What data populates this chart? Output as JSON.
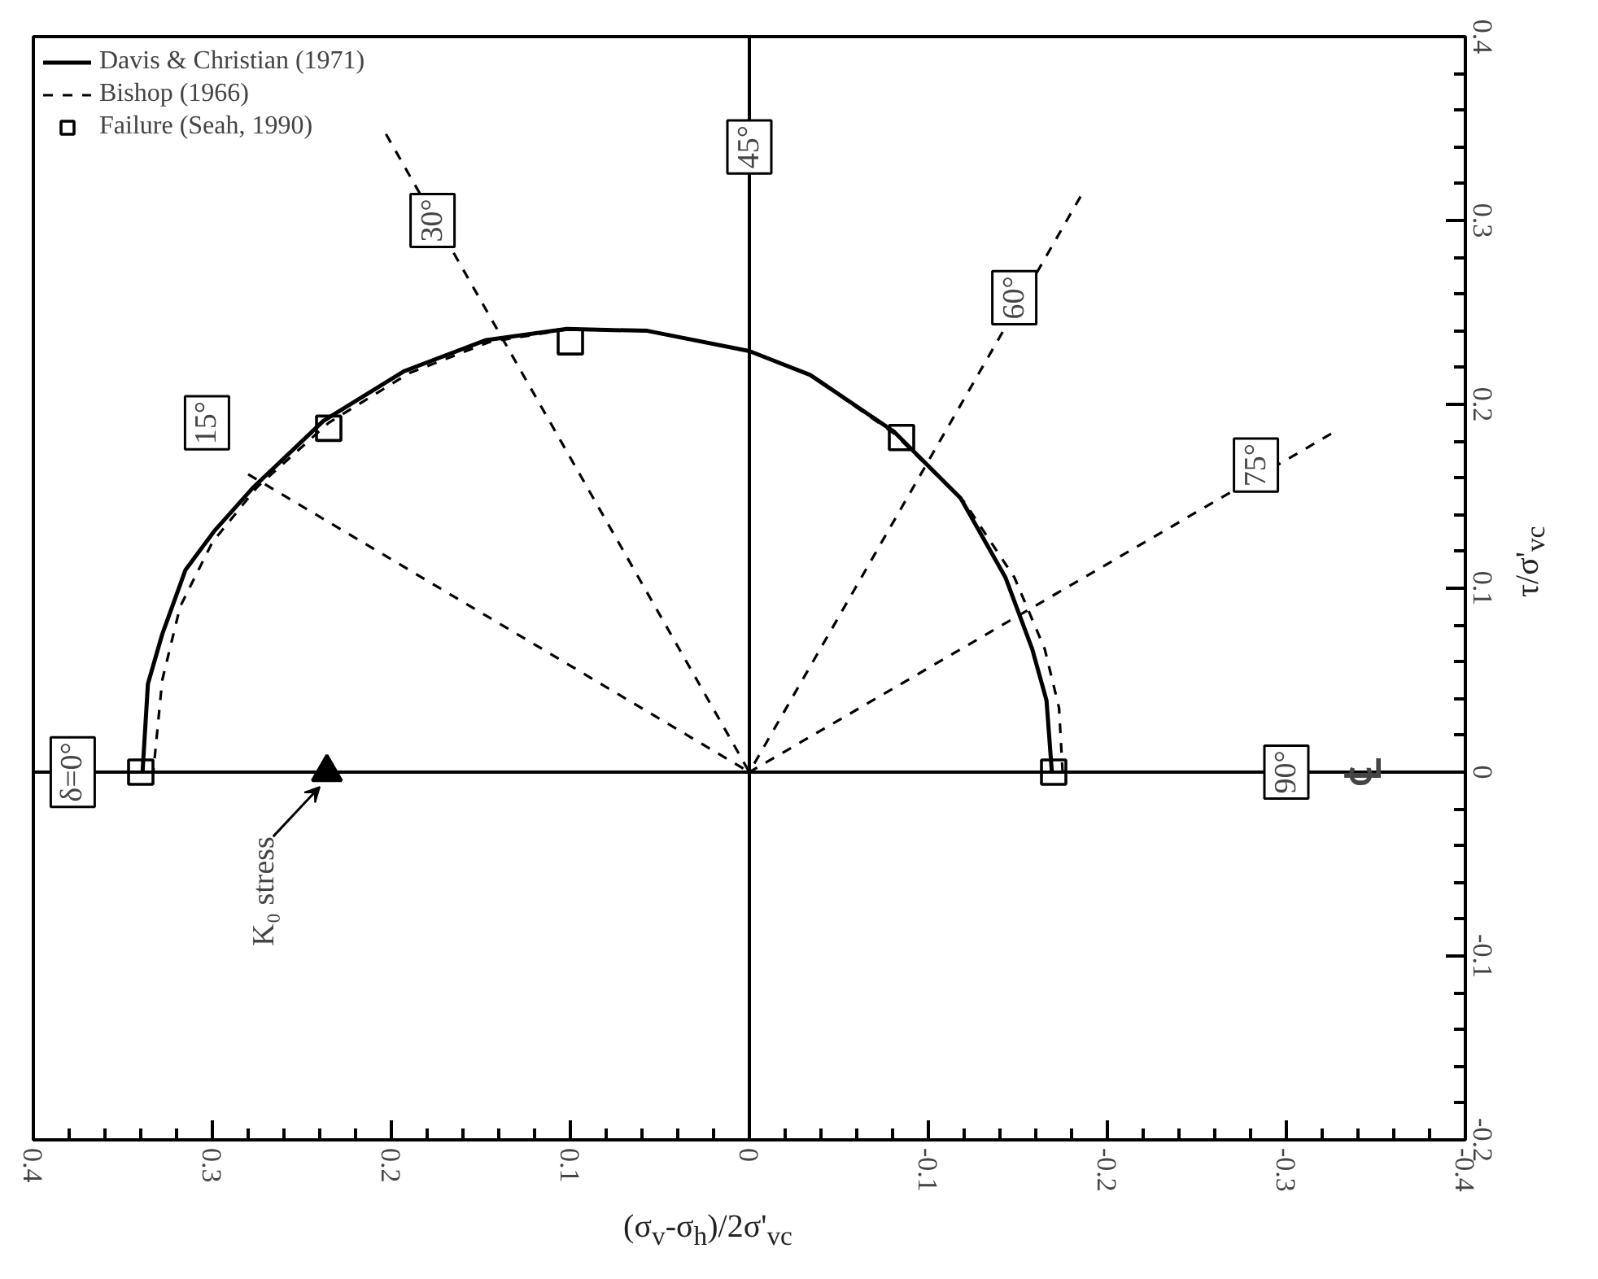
{
  "chart_data": {
    "type": "line",
    "xlabel": "(σ$_{v}$-σ$_{h}$)/2σ'$_{vc}$",
    "ylabel": "τ/σ'$_{vc}$",
    "xlim": [
      0.4,
      -0.4
    ],
    "ylim": [
      -0.2,
      0.4
    ],
    "xticks": [
      -0.4,
      -0.3,
      -0.2,
      -0.1,
      0,
      0.1,
      0.2,
      0.3,
      0.4,
      {
        "value": -0.38,
        "label": null
      },
      {
        "value": -0.36,
        "label": null
      },
      {
        "value": -0.34,
        "label": null
      },
      {
        "value": -0.32,
        "label": null
      },
      {
        "value": -0.28,
        "label": null
      },
      {
        "value": -0.26,
        "label": null
      },
      {
        "value": -0.24,
        "label": null
      },
      {
        "value": -0.22,
        "label": null
      },
      {
        "value": -0.18,
        "label": null
      },
      {
        "value": -0.16,
        "label": null
      },
      {
        "value": -0.14,
        "label": null
      },
      {
        "value": -0.12,
        "label": null
      },
      {
        "value": -0.08,
        "label": null
      },
      {
        "value": -0.06,
        "label": null
      },
      {
        "value": -0.04,
        "label": null
      },
      {
        "value": -0.02,
        "label": null
      },
      {
        "value": 0.02,
        "label": null
      },
      {
        "value": 0.04,
        "label": null
      },
      {
        "value": 0.06,
        "label": null
      },
      {
        "value": 0.08,
        "label": null
      },
      {
        "value": 0.12,
        "label": null
      },
      {
        "value": 0.14,
        "label": null
      },
      {
        "value": 0.16,
        "label": null
      },
      {
        "value": 0.18,
        "label": null
      },
      {
        "value": 0.22,
        "label": null
      },
      {
        "value": 0.24,
        "label": null
      },
      {
        "value": 0.26,
        "label": null
      },
      {
        "value": 0.28,
        "label": null
      },
      {
        "value": 0.32,
        "label": null
      },
      {
        "value": 0.34,
        "label": null
      },
      {
        "value": 0.36,
        "label": null
      },
      {
        "value": 0.38,
        "label": null
      }
    ],
    "yticks": [
      -0.2,
      -0.1,
      0,
      0.1,
      0.2,
      0.3,
      0.4,
      {
        "value": -0.18,
        "label": null
      },
      {
        "value": -0.16,
        "label": null
      },
      {
        "value": -0.14,
        "label": null
      },
      {
        "value": -0.12,
        "label": null
      },
      {
        "value": -0.08,
        "label": null
      },
      {
        "value": -0.06,
        "label": null
      },
      {
        "value": -0.04,
        "label": null
      },
      {
        "value": -0.02,
        "label": null
      },
      {
        "value": 0.02,
        "label": null
      },
      {
        "value": 0.04,
        "label": null
      },
      {
        "value": 0.06,
        "label": null
      },
      {
        "value": 0.08,
        "label": null
      },
      {
        "value": 0.12,
        "label": null
      },
      {
        "value": 0.14,
        "label": null
      },
      {
        "value": 0.16,
        "label": null
      },
      {
        "value": 0.18,
        "label": null
      },
      {
        "value": 0.22,
        "label": null
      },
      {
        "value": 0.24,
        "label": null
      },
      {
        "value": 0.26,
        "label": null
      },
      {
        "value": 0.28,
        "label": null
      },
      {
        "value": 0.32,
        "label": null
      },
      {
        "value": 0.34,
        "label": null
      },
      {
        "value": 0.36,
        "label": null
      },
      {
        "value": 0.38,
        "label": null
      }
    ],
    "series": [
      {
        "name": "Davis & Christian (1971)",
        "color": "#000000",
        "line_style": "solid",
        "x": [
          0.339,
          0.336,
          0.328,
          0.315,
          0.299,
          0.277,
          0.238,
          0.193,
          0.147,
          0.102,
          0.057,
          0,
          -0.034,
          -0.081,
          -0.118,
          -0.143,
          -0.158,
          -0.166,
          -0.169
        ],
        "values": [
          0,
          0.048,
          0.075,
          0.11,
          0.131,
          0.155,
          0.191,
          0.218,
          0.235,
          0.241,
          0.24,
          0.229,
          0.216,
          0.185,
          0.149,
          0.106,
          0.067,
          0.039,
          0
        ]
      },
      {
        "name": "Bishop (1966)",
        "color": "#000000",
        "line_style": "dashed",
        "x": [
          0.333,
          0.328,
          0.318,
          0.3,
          0.275,
          0.235,
          0.19,
          0.145,
          0.1,
          0.057,
          0,
          -0.034,
          -0.081,
          -0.12,
          -0.148,
          -0.165,
          -0.173,
          -0.175
        ],
        "values": [
          0,
          0.05,
          0.09,
          0.125,
          0.155,
          0.19,
          0.217,
          0.234,
          0.241,
          0.24,
          0.229,
          0.216,
          0.184,
          0.147,
          0.106,
          0.067,
          0.035,
          0
        ]
      },
      {
        "name": "Failure (Seah, 1990)",
        "type": "scatter",
        "marker": "square",
        "color": "#000000",
        "x": [
          0.34,
          0.235,
          0.1,
          -0.085,
          -0.17
        ],
        "values": [
          0,
          0.187,
          0.234,
          0.182,
          0
        ]
      },
      {
        "type": "scatter",
        "marker": "triangle",
        "color": "#000000",
        "x": [
          0.236
        ],
        "values": [
          0
        ]
      },
      {
        "color": "#000000",
        "line_style": "dashed",
        "x": [
          0,
          0.28
        ],
        "values": [
          0,
          0.162
        ]
      },
      {
        "color": "#000000",
        "line_style": "dashed",
        "x": [
          0,
          0.203
        ],
        "values": [
          0,
          0.347
        ]
      },
      {
        "color": "#000000",
        "line_style": "dashed",
        "x": [
          0,
          -0.185
        ],
        "values": [
          0,
          0.313
        ]
      },
      {
        "color": "#000000",
        "line_style": "dashed",
        "x": [
          0,
          -0.325
        ],
        "values": [
          0,
          0.184
        ]
      }
    ],
    "ref_lines": [
      {
        "axis": "x",
        "value": 0
      },
      {
        "axis": "y",
        "value": 0,
        "label": "℄"
      }
    ],
    "annotations": [
      {
        "text": "δ=0°",
        "x": 0.378,
        "y": 0
      },
      {
        "text": "15°",
        "x": 0.303,
        "y": 0.19
      },
      {
        "text": "30°",
        "x": 0.177,
        "y": 0.3
      },
      {
        "text": "45°",
        "x": 0,
        "y": 0.34
      },
      {
        "text": "60°",
        "x": -0.148,
        "y": 0.258
      },
      {
        "text": "75°",
        "x": -0.283,
        "y": 0.167
      },
      {
        "text": "90°",
        "x": -0.3,
        "y": 0
      },
      {
        "text": "K₀ stress",
        "x": 0.236,
        "y": 0
      }
    ],
    "legend": "top left"
  }
}
